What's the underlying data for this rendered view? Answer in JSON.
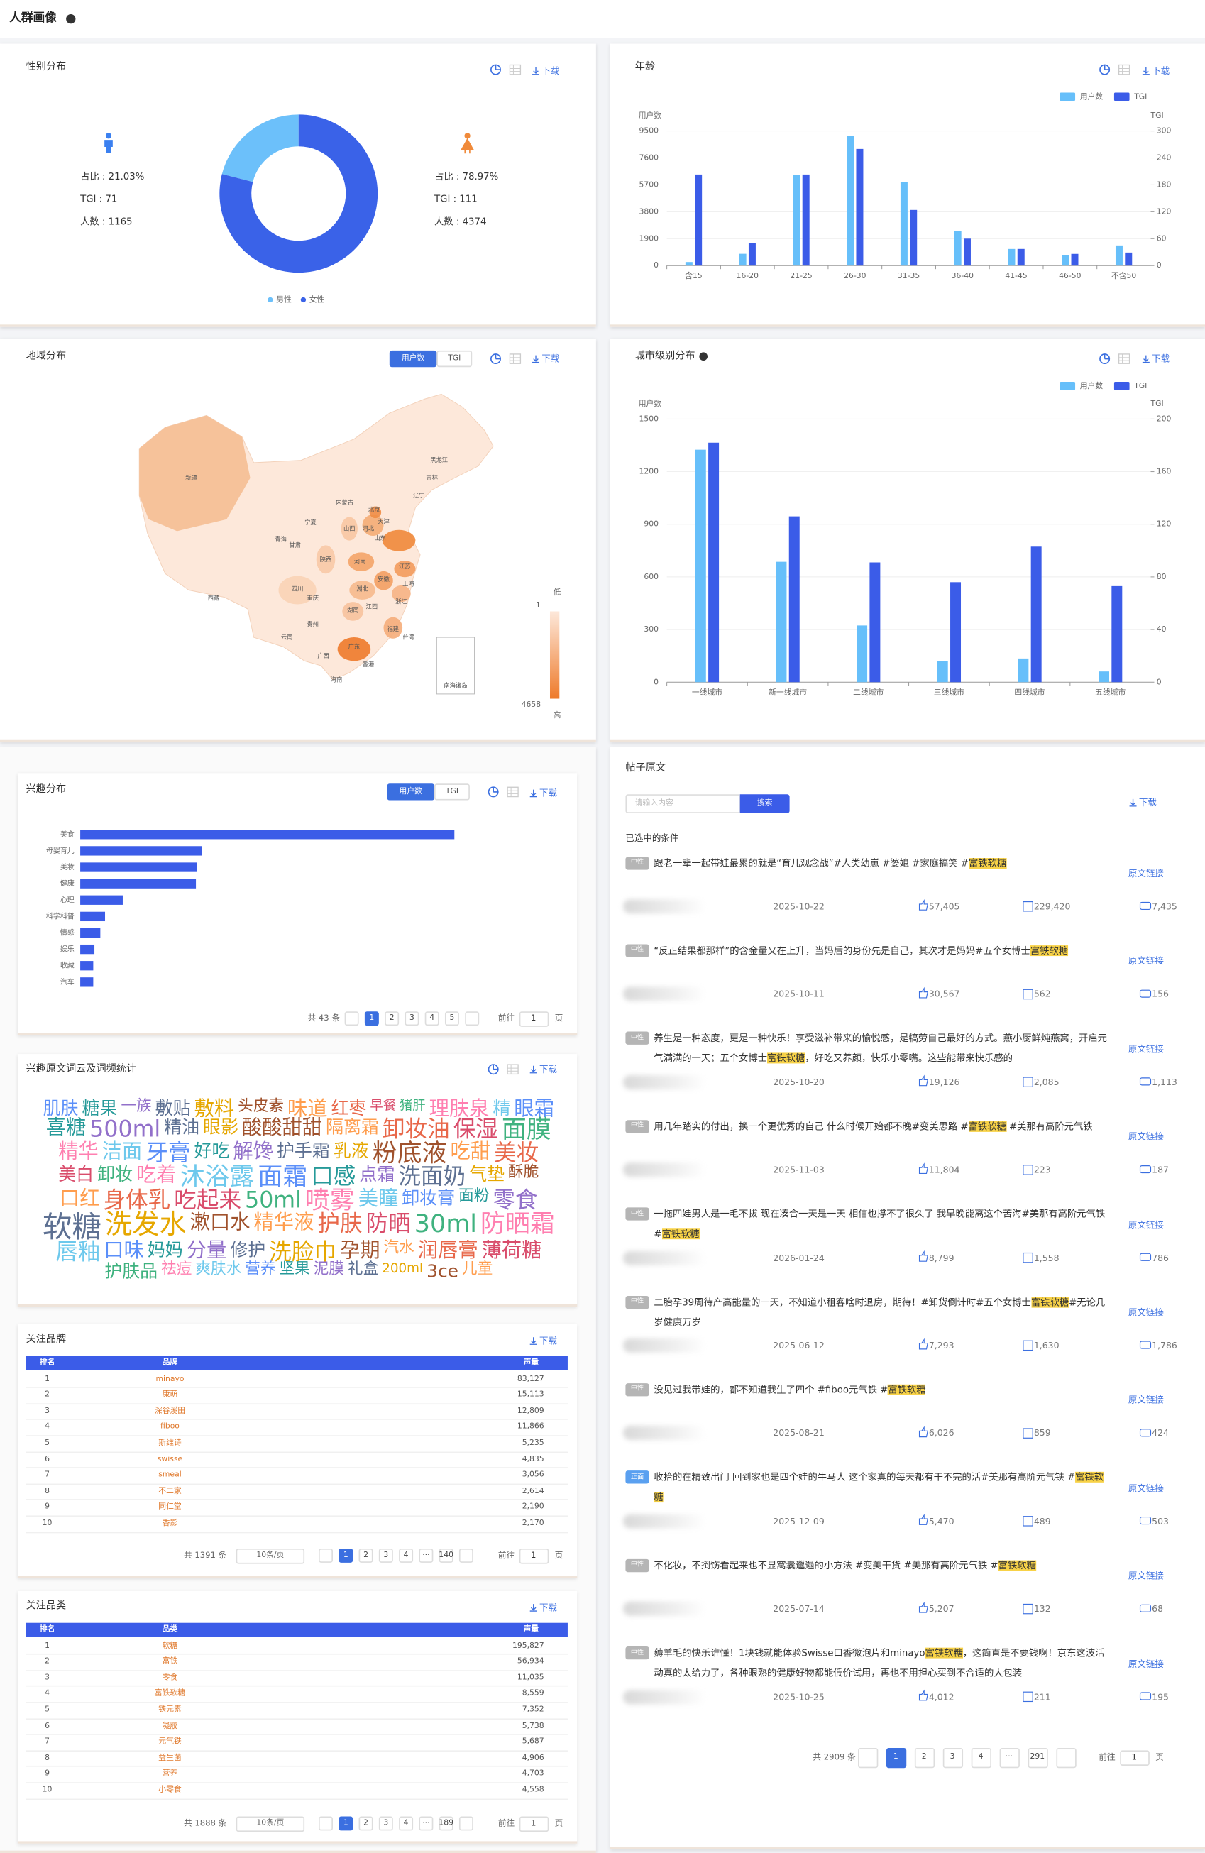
{
  "header": {
    "title": "人群画像"
  },
  "ui": {
    "download": "下载",
    "tab_users": "用户数",
    "tab_tgi": "TGI",
    "goto": "前往",
    "page_unit": "页",
    "per_page": "10条/页",
    "link": "原文链接"
  },
  "gender": {
    "male": {
      "share": "占比 : 21.03%",
      "tgi": "TGI : 71",
      "count": "人数 : 1165"
    },
    "female": {
      "share": "占比 : 78.97%",
      "tgi": "TGI : 111",
      "count": "人数 : 4374"
    }
  },
  "chart_data": [
    {
      "type": "pie",
      "title": "性别分布",
      "categories": [
        "男性",
        "女性"
      ],
      "values": [
        21.03,
        78.97
      ],
      "colors": [
        "#6cc0fa",
        "#3a62e8"
      ]
    },
    {
      "type": "bar",
      "title": "年龄",
      "y_label": "用户数",
      "y2_label": "TGI",
      "categories": [
        "含15",
        "16-20",
        "21-25",
        "26-30",
        "31-35",
        "36-40",
        "41-45",
        "46-50",
        "不含50"
      ],
      "series": [
        {
          "name": "用户数",
          "color": "#66bffa",
          "values": [
            250,
            830,
            6400,
            9170,
            5900,
            2420,
            1170,
            750,
            1420
          ]
        },
        {
          "name": "TGI",
          "color": "#3b5ce8",
          "axis": "y2",
          "values": [
            203,
            50,
            203,
            260,
            124,
            60,
            37,
            26,
            29
          ]
        }
      ],
      "ylim": [
        0,
        9500
      ],
      "yticks": [
        0,
        1900,
        3800,
        5700,
        7600,
        9500
      ],
      "y2lim": [
        0,
        300
      ],
      "y2ticks": [
        0,
        60,
        120,
        180,
        240,
        300
      ],
      "grid": true
    },
    {
      "type": "bar",
      "title": "城市级别分布",
      "y_label": "用户数",
      "y2_label": "TGI",
      "categories": [
        "一线城市",
        "新一线城市",
        "二线城市",
        "三线城市",
        "四线城市",
        "五线城市"
      ],
      "series": [
        {
          "name": "用户数",
          "color": "#66bffa",
          "values": [
            1325,
            686,
            323,
            121,
            135,
            61
          ]
        },
        {
          "name": "TGI",
          "color": "#3b5ce8",
          "axis": "y2",
          "values": [
            182,
            126,
            91,
            76,
            103,
            73
          ]
        }
      ],
      "ylim": [
        0,
        1500
      ],
      "yticks": [
        0,
        300,
        600,
        900,
        1200,
        1500
      ],
      "y2lim": [
        0,
        200
      ],
      "y2ticks": [
        0,
        40,
        80,
        120,
        160,
        200
      ],
      "grid": true
    },
    {
      "type": "hbar",
      "title": "兴趣分布",
      "color": "#3b5ce8",
      "categories": [
        "美食",
        "母婴育儿",
        "美妆",
        "健康",
        "心理",
        "科学科普",
        "情感",
        "娱乐",
        "收藏",
        "汽车"
      ],
      "values": [
        317,
        103,
        99,
        98,
        36,
        21,
        17,
        12,
        11,
        11
      ]
    }
  ],
  "map": {
    "title": "地域分布",
    "low": "低",
    "high": "高",
    "min": "1",
    "max": "4658",
    "provinces": [
      "新疆",
      "西藏",
      "青海",
      "甘肃",
      "宁夏",
      "内蒙古",
      "黑龙江",
      "吉林",
      "辽宁",
      "北京",
      "天津",
      "河北",
      "山西",
      "陕西",
      "山东",
      "河南",
      "江苏",
      "安徽",
      "上海",
      "湖北",
      "四川",
      "重庆",
      "湖南",
      "江西",
      "浙江",
      "贵州",
      "福建",
      "云南",
      "广西",
      "广东",
      "台湾",
      "香港",
      "海南",
      "南海诸岛"
    ]
  },
  "interest_pagination": {
    "total": "共 43 条",
    "pages": [
      1,
      2,
      3,
      4,
      5
    ],
    "jump": 1
  },
  "wordcloud": {
    "title": "兴趣原文词云及词频统计",
    "words": [
      "肌肤",
      "糖果",
      "一族",
      "敷贴",
      "敷料",
      "头皮素",
      "味道",
      "红枣",
      "早餐",
      "猪肝",
      "理肤泉",
      "精",
      "眼霜",
      "喜糖",
      "500ml",
      "精油",
      "眼影",
      "酸酸甜甜",
      "隔离霜",
      "卸妆油",
      "保湿",
      "面膜",
      "精华",
      "洁面",
      "牙膏",
      "好吃",
      "解馋",
      "护手霜",
      "乳液",
      "粉底液",
      "吃甜",
      "美妆",
      "美白",
      "卸妆",
      "吃着",
      "沐浴露",
      "面霜",
      "口感",
      "点霜",
      "洗面奶",
      "气垫",
      "酥脆",
      "口红",
      "身体乳",
      "吃起来",
      "50ml",
      "喷雾",
      "美瞳",
      "卸妆膏",
      "面粉",
      "零食",
      "软糖",
      "洗发水",
      "漱口水",
      "精华液",
      "护肤",
      "防晒",
      "30ml",
      "防晒霜",
      "唇釉",
      "口味",
      "妈妈",
      "分量",
      "修护",
      "洗脸巾",
      "孕期",
      "汽水",
      "润唇膏",
      "薄荷糖",
      "护肤品",
      "祛痘",
      "爽肤水",
      "营养",
      "坚果",
      "泥膜",
      "礼盒",
      "200ml",
      "3ce",
      "儿童"
    ],
    "weights": [
      5,
      5,
      4,
      5,
      6,
      4,
      6,
      5,
      3,
      3,
      6,
      5,
      6,
      6,
      7,
      5,
      5,
      6,
      5,
      7,
      7,
      8,
      6,
      6,
      7,
      5,
      6,
      5,
      5,
      8,
      6,
      7,
      5,
      5,
      6,
      8,
      8,
      7,
      5,
      7,
      5,
      4,
      6,
      7,
      7,
      7,
      8,
      6,
      5,
      4,
      7,
      10,
      9,
      6,
      6,
      7,
      7,
      8,
      8,
      7,
      6,
      5,
      6,
      5,
      7,
      6,
      4,
      6,
      6,
      5,
      4,
      4,
      4,
      4,
      4,
      4,
      3,
      5,
      4
    ]
  },
  "brands": {
    "title": "关注品牌",
    "header": [
      "排名",
      "品牌",
      "声量"
    ],
    "rows": [
      [
        1,
        "minayo",
        "83,127"
      ],
      [
        2,
        "康萌",
        "15,113"
      ],
      [
        3,
        "深谷溪田",
        "12,809"
      ],
      [
        4,
        "fiboo",
        "11,866"
      ],
      [
        5,
        "斯维诗",
        "5,235"
      ],
      [
        6,
        "swisse",
        "4,835"
      ],
      [
        7,
        "smeal",
        "3,056"
      ],
      [
        8,
        "不二家",
        "2,614"
      ],
      [
        9,
        "同仁堂",
        "2,190"
      ],
      [
        10,
        "香影",
        "2,170"
      ]
    ],
    "pagination": {
      "total": "共 1391 条",
      "pages": [
        1,
        2,
        3,
        4,
        "···",
        140
      ],
      "jump": 1
    }
  },
  "categories": {
    "title": "关注品类",
    "header": [
      "排名",
      "品类",
      "声量"
    ],
    "rows": [
      [
        1,
        "软糖",
        "195,827"
      ],
      [
        2,
        "富铁",
        "56,934"
      ],
      [
        3,
        "零食",
        "11,035"
      ],
      [
        4,
        "富铁软糖",
        "8,559"
      ],
      [
        5,
        "铁元素",
        "7,352"
      ],
      [
        6,
        "凝胶",
        "5,738"
      ],
      [
        7,
        "元气铁",
        "5,687"
      ],
      [
        8,
        "益生菌",
        "4,906"
      ],
      [
        9,
        "营养",
        "4,703"
      ],
      [
        10,
        "小零食",
        "4,558"
      ]
    ],
    "pagination": {
      "total": "共 1888 条",
      "pages": [
        1,
        2,
        3,
        4,
        "···",
        189
      ],
      "jump": 1
    }
  },
  "posts": {
    "title": "帖子原文",
    "search_placeholder": "请输入内容",
    "search_button": "搜索",
    "selected": "已选中的条件",
    "highlight": "富铁软糖",
    "items": [
      {
        "tag": "中性",
        "text": "跟老一辈一起带娃最累的就是“育儿观念战”#人类幼崽 #婆媳 #家庭搞笑 #富铁软糖",
        "date": "2025-10-22",
        "likes": "57,405",
        "shares": "229,420",
        "comments": "7,435"
      },
      {
        "tag": "中性",
        "text": "“反正结果都那样”的含金量又在上升，当妈后的身份先是自己，其次才是妈妈#五个女博士富铁软糖",
        "date": "2025-10-11",
        "likes": "30,567",
        "shares": "562",
        "comments": "156"
      },
      {
        "tag": "中性",
        "text": "养生是一种态度，更是一种快乐！享受滋补带来的愉悦感，是犒劳自己最好的方式。燕小厨鲜炖燕窝，开启元气满满的一天；五个女博士富铁软糖，好吃又养颜，快乐小零嘴。这些能带来快乐感的",
        "date": "2025-10-20",
        "likes": "19,126",
        "shares": "2,085",
        "comments": "1,113"
      },
      {
        "tag": "中性",
        "text": "用几年踏实的付出，换一个更优秀的自己 什么时候开始都不晚#变美思路 #富铁软糖 #美那有高阶元气铁",
        "date": "2025-11-03",
        "likes": "11,804",
        "shares": "223",
        "comments": "187"
      },
      {
        "tag": "中性",
        "text": "一拖四娃男人是一毛不拔 现在凑合一天是一天 相信也撑不了很久了 我早晚能离这个苦海#美那有高阶元气铁 #富铁软糖",
        "date": "2026-01-24",
        "likes": "8,799",
        "shares": "1,558",
        "comments": "786"
      },
      {
        "tag": "中性",
        "text": "二胎孕39周待产高能量的一天，不知道小租客啥时退房，期待！#卸货倒计时#五个女博士富铁软糖#无论几岁健康万岁",
        "date": "2025-06-12",
        "likes": "7,293",
        "shares": "1,630",
        "comments": "1,786"
      },
      {
        "tag": "中性",
        "text": "没见过我带娃的，都不知道我生了四个 #fiboo元气铁 #富铁软糖",
        "date": "2025-08-21",
        "likes": "6,026",
        "shares": "859",
        "comments": "424"
      },
      {
        "tag": "正面",
        "text": "收拾的在精致出门 回到家也是四个娃的牛马人 这个家真的每天都有干不完的活#美那有高阶元气铁 #富铁软糖",
        "date": "2025-12-09",
        "likes": "5,470",
        "shares": "489",
        "comments": "503"
      },
      {
        "tag": "中性",
        "text": "不化妆，不捯饬看起来也不显窝囊邋遢的小方法 #变美干货 #美那有高阶元气铁 #富铁软糖",
        "date": "2025-07-14",
        "likes": "5,207",
        "shares": "132",
        "comments": "68"
      },
      {
        "tag": "中性",
        "text": "薅羊毛的快乐谁懂！1块钱就能体验Swisse口香微泡片和minayo富铁软糖，这简直是不要钱啊！京东这波活动真的太给力了，各种眼熟的健康好物都能低价试用，再也不用担心买到不合适的大包装",
        "date": "2025-10-25",
        "likes": "4,012",
        "shares": "211",
        "comments": "195"
      }
    ],
    "pagination": {
      "total": "共 2909 条",
      "pages": [
        1,
        2,
        3,
        4,
        "···",
        291
      ],
      "jump": 1
    }
  }
}
